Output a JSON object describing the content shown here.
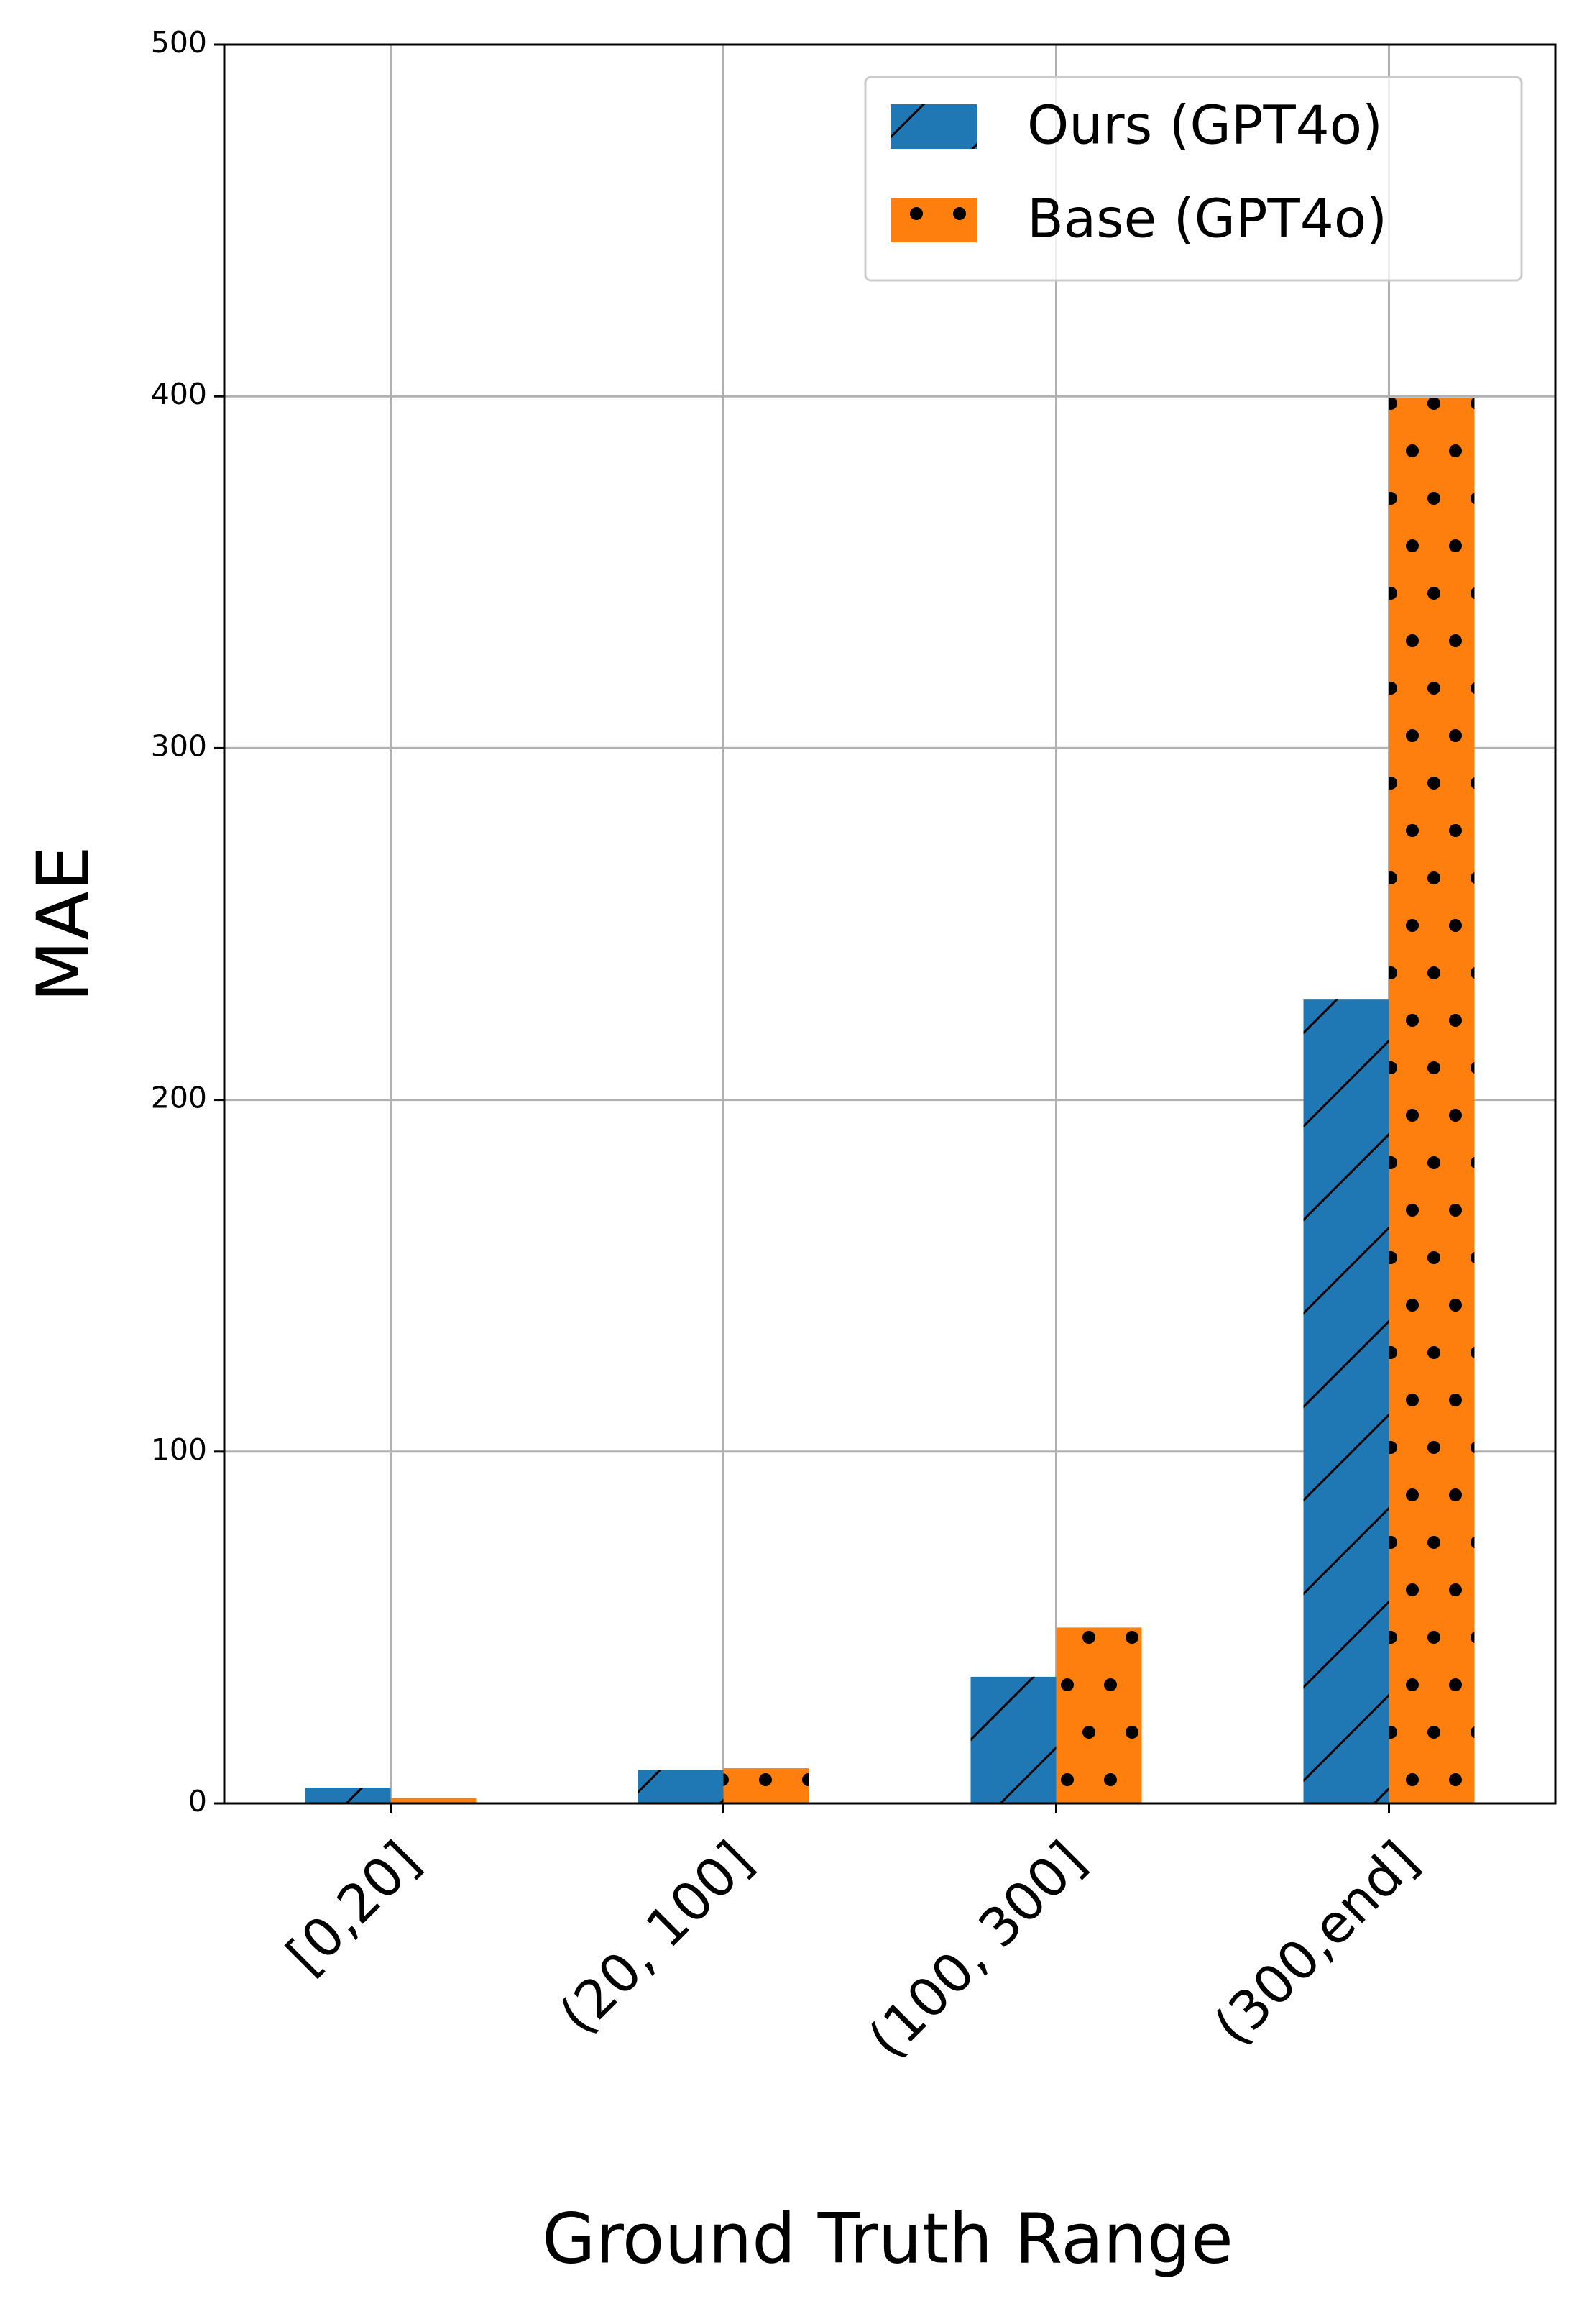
{
  "chart_data": {
    "type": "bar",
    "xlabel": "Ground Truth Range",
    "ylabel": "MAE",
    "categories": [
      "[0,20]",
      "(20, 100]",
      "(100, 300]",
      "(300,end]"
    ],
    "series": [
      {
        "name": "Ours (GPT4o)",
        "color": "#1f77b4",
        "hatch": "/",
        "values": [
          4.5,
          9.5,
          36,
          228.5
        ]
      },
      {
        "name": "Base (GPT4o)",
        "color": "#ff7f0e",
        "hatch": ".",
        "values": [
          1.5,
          10,
          50,
          399.5
        ]
      }
    ],
    "ylim": [
      0,
      500
    ],
    "yticks": [
      0,
      100,
      200,
      300,
      400,
      500
    ],
    "grid": true,
    "legend": "upper right"
  }
}
